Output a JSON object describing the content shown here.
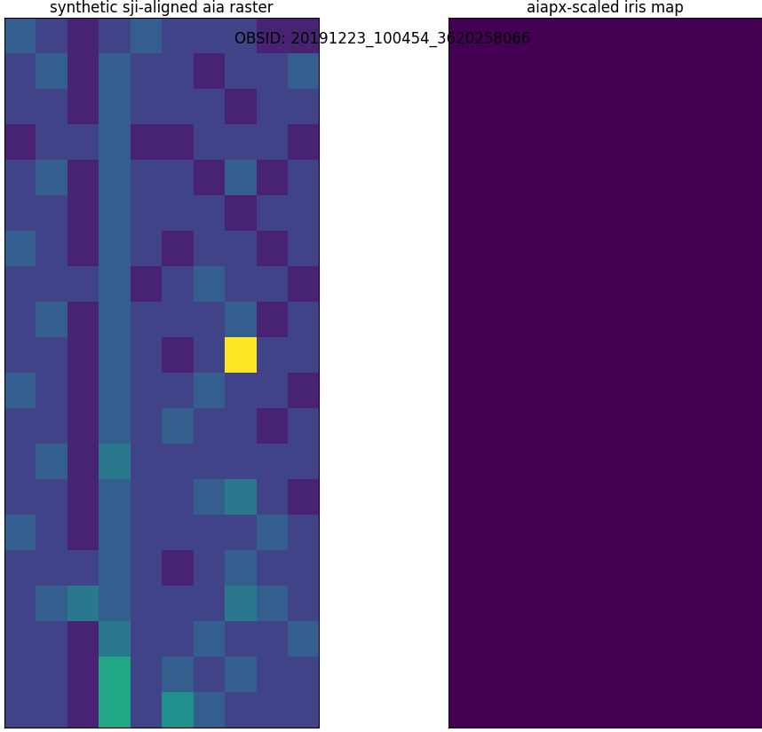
{
  "chart_data": [
    {
      "type": "heatmap",
      "title": "synthetic sji-aligned aia raster",
      "color": "viridis",
      "tick_labels": false,
      "value_range": [
        0,
        10
      ],
      "cells": [
        [
          3,
          2,
          1,
          2,
          3,
          2,
          2,
          2,
          1,
          1
        ],
        [
          2,
          3,
          1,
          3,
          2,
          2,
          1,
          2,
          2,
          3
        ],
        [
          2,
          2,
          1,
          3,
          2,
          2,
          2,
          1,
          2,
          2
        ],
        [
          1,
          2,
          2,
          3,
          1,
          1,
          2,
          2,
          2,
          1
        ],
        [
          2,
          3,
          1,
          3,
          2,
          2,
          1,
          3,
          1,
          2
        ],
        [
          2,
          2,
          1,
          3,
          2,
          2,
          2,
          1,
          2,
          2
        ],
        [
          3,
          2,
          1,
          3,
          2,
          1,
          2,
          2,
          1,
          2
        ],
        [
          2,
          2,
          2,
          3,
          1,
          2,
          3,
          2,
          2,
          1
        ],
        [
          2,
          3,
          1,
          3,
          2,
          2,
          2,
          3,
          1,
          2
        ],
        [
          2,
          2,
          1,
          3,
          2,
          1,
          2,
          10,
          2,
          2
        ],
        [
          3,
          2,
          1,
          3,
          2,
          2,
          3,
          2,
          2,
          1
        ],
        [
          2,
          2,
          1,
          3,
          2,
          3,
          2,
          2,
          1,
          2
        ],
        [
          2,
          3,
          1,
          4,
          2,
          2,
          2,
          2,
          2,
          2
        ],
        [
          2,
          2,
          1,
          3,
          2,
          2,
          3,
          4,
          2,
          1
        ],
        [
          3,
          2,
          1,
          3,
          2,
          2,
          2,
          2,
          3,
          2
        ],
        [
          2,
          2,
          2,
          3,
          2,
          1,
          2,
          3,
          2,
          2
        ],
        [
          2,
          3,
          4,
          3,
          2,
          2,
          2,
          4,
          3,
          2
        ],
        [
          2,
          2,
          1,
          4,
          2,
          2,
          3,
          2,
          2,
          3
        ],
        [
          2,
          2,
          1,
          6,
          2,
          3,
          2,
          3,
          2,
          2
        ],
        [
          2,
          2,
          1,
          6,
          2,
          5,
          3,
          2,
          2,
          2
        ]
      ]
    },
    {
      "type": "heatmap",
      "title": "aiapx-scaled iris map",
      "color": "viridis",
      "tick_labels": false,
      "value_range": [
        0,
        10
      ],
      "cells": [
        [
          0,
          0,
          0,
          0,
          0,
          0,
          0,
          0,
          0,
          0
        ],
        [
          0,
          0,
          0,
          0,
          0,
          0,
          0,
          0,
          0,
          0
        ],
        [
          0,
          0,
          0,
          0,
          0,
          0,
          0,
          0,
          0,
          0
        ],
        [
          0,
          0,
          0,
          0,
          0,
          0,
          0,
          0,
          0,
          0
        ],
        [
          0,
          0,
          0,
          0,
          0,
          0,
          0,
          0,
          0,
          0
        ],
        [
          0,
          0,
          0,
          0,
          0,
          0,
          0,
          0,
          0,
          0
        ],
        [
          0,
          0,
          0,
          0,
          0,
          0,
          0,
          0,
          0,
          0
        ],
        [
          0,
          0,
          0,
          0,
          0,
          0,
          0,
          0,
          0,
          0
        ],
        [
          0,
          0,
          0,
          0,
          0,
          0,
          0,
          0,
          0,
          0
        ],
        [
          0,
          0,
          0,
          0,
          0,
          0,
          0,
          0,
          0,
          0
        ],
        [
          0,
          0,
          0,
          0,
          0,
          0,
          0,
          0,
          0,
          0
        ],
        [
          0,
          0,
          0,
          0,
          0,
          0,
          0,
          0,
          0,
          0
        ],
        [
          0,
          0,
          0,
          0,
          0,
          0,
          0,
          0,
          0,
          0
        ],
        [
          0,
          0,
          0,
          0,
          0,
          0,
          0,
          0,
          0,
          0
        ],
        [
          0,
          0,
          0,
          0,
          0,
          0,
          0,
          0,
          0,
          0
        ],
        [
          0,
          0,
          0,
          0,
          0,
          0,
          0,
          0,
          0,
          0
        ],
        [
          0,
          0,
          0,
          0,
          0,
          0,
          0,
          0,
          0,
          0
        ],
        [
          0,
          0,
          0,
          0,
          0,
          0,
          0,
          0,
          0,
          0
        ],
        [
          0,
          0,
          0,
          0,
          0,
          0,
          0,
          0,
          0,
          0
        ],
        [
          0,
          0,
          0,
          0,
          0,
          0,
          0,
          0,
          0,
          0
        ]
      ]
    }
  ],
  "annotation": "OBSID: 20191223_100454_3620258066"
}
